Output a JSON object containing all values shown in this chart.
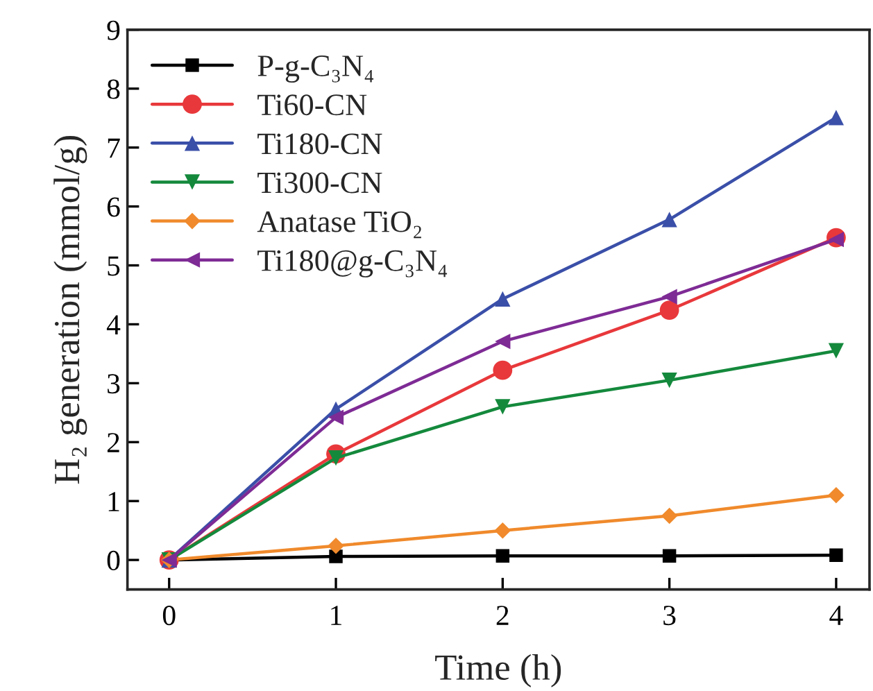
{
  "chart_data": {
    "type": "line",
    "xlabel": "Time (h)",
    "ylabel": "H₂ generation (mmol/g)",
    "x": [
      0,
      1,
      2,
      3,
      4
    ],
    "series": [
      {
        "name": "P-g-C₃N₄",
        "color": "#000000",
        "marker": "square",
        "values": [
          0,
          0.06,
          0.07,
          0.07,
          0.08
        ]
      },
      {
        "name": "Ti60-CN",
        "color": "#e8383b",
        "marker": "circle",
        "values": [
          0,
          1.8,
          3.22,
          4.24,
          5.47
        ]
      },
      {
        "name": "Ti180-CN",
        "color": "#3a4fa8",
        "marker": "triangle",
        "values": [
          0,
          2.56,
          4.43,
          5.78,
          7.51
        ]
      },
      {
        "name": "Ti300-CN",
        "color": "#14893c",
        "marker": "triangle_down",
        "values": [
          0,
          1.73,
          2.6,
          3.05,
          3.55
        ]
      },
      {
        "name": "Anatase TiO₂",
        "color": "#f08a2c",
        "marker": "diamond",
        "values": [
          0,
          0.24,
          0.5,
          0.75,
          1.1
        ]
      },
      {
        "name": "Ti180@g-C₃N₄",
        "color": "#7e2b95",
        "marker": "triangle_left",
        "values": [
          0,
          2.42,
          3.71,
          4.47,
          5.44
        ]
      }
    ],
    "xlim": [
      -0.25,
      4.2
    ],
    "ylim": [
      -0.5,
      9
    ],
    "xticks": [
      0,
      1,
      2,
      3,
      4
    ],
    "yticks": [
      0,
      1,
      2,
      3,
      4,
      5,
      6,
      7,
      8,
      9
    ],
    "grid": false,
    "legend": "top left",
    "line_style": "solid"
  }
}
